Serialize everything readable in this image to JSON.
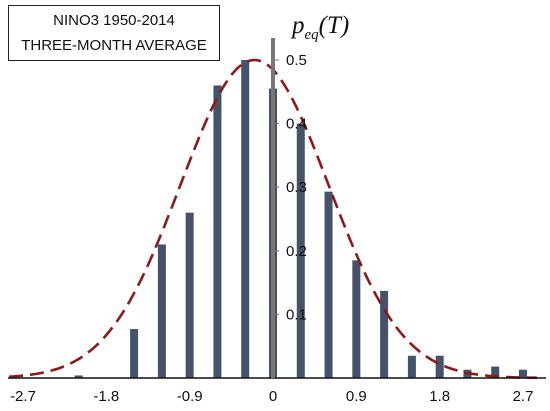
{
  "chart_data": {
    "type": "bar",
    "title_lines": [
      "NINO3 1950-2014",
      "THREE-MONTH AVERAGE"
    ],
    "ylabel": {
      "main": "p",
      "subscript": "eq",
      "arg": "(T)"
    },
    "xlim": [
      -2.85,
      2.85
    ],
    "ylim": [
      0,
      0.5
    ],
    "xticks": [
      "-2.7",
      "-1.8",
      "-0.9",
      "0",
      "0.9",
      "1.8",
      "2.7"
    ],
    "xtick_values": [
      -2.7,
      -1.8,
      -0.9,
      0,
      0.9,
      1.8,
      2.7
    ],
    "yticks": [
      "0.1",
      "0.2",
      "0.3",
      "0.4",
      "0.5"
    ],
    "ytick_values": [
      0.1,
      0.2,
      0.3,
      0.4,
      0.5
    ],
    "bars": {
      "x": [
        -2.1,
        -1.5,
        -1.2,
        -0.9,
        -0.6,
        -0.3,
        0,
        0.3,
        0.6,
        0.9,
        1.2,
        1.5,
        1.8,
        2.1,
        2.4,
        2.7
      ],
      "y": [
        0.004,
        0.077,
        0.21,
        0.26,
        0.46,
        0.5,
        0.455,
        0.4,
        0.293,
        0.185,
        0.137,
        0.035,
        0.035,
        0.013,
        0.018,
        0.013
      ],
      "color": "#44536a"
    },
    "curve": {
      "type": "gaussian",
      "mean": -0.2,
      "std": 0.8,
      "peak": 0.5,
      "color": "#8b1a1a",
      "style": "dashed"
    }
  }
}
